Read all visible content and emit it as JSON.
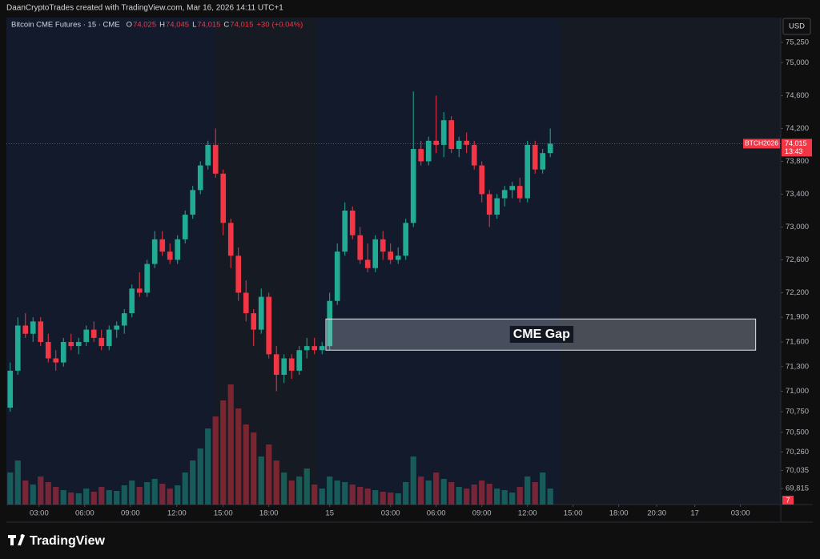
{
  "header": {
    "text": "DaanCryptoTrades created with TradingView.com, Mar 16, 2026 14:11 UTC+1"
  },
  "chart_data": {
    "type": "candlestick",
    "title": "Bitcoin CME Futures · 15 · CME",
    "ohlc_legend": [
      {
        "key": "O",
        "value": 74025,
        "label": "74,025"
      },
      {
        "key": "H",
        "value": 74045,
        "label": "74,045"
      },
      {
        "key": "L",
        "value": 74015,
        "label": "74,015"
      },
      {
        "key": "C",
        "value": 74015,
        "label": "74,015"
      }
    ],
    "change": {
      "value": 30,
      "label": "+30"
    },
    "change_pct": {
      "value": 0.04,
      "label": "(+0.04%)"
    },
    "currency": "USD",
    "symbol": "BTCH2026",
    "last_price": {
      "value": 74015,
      "label": "74,015"
    },
    "countdown": "13:43",
    "badge": 7,
    "up_color": "#22ab94",
    "down_color": "#f23645",
    "ylim": [
      69620,
      75550
    ],
    "yticks": [
      {
        "value": 69815,
        "label": "69,815"
      },
      {
        "value": 70035,
        "label": "70,035"
      },
      {
        "value": 70260,
        "label": "70,260"
      },
      {
        "value": 70500,
        "label": "70,500"
      },
      {
        "value": 70750,
        "label": "70,750"
      },
      {
        "value": 71000,
        "label": "71,000"
      },
      {
        "value": 71300,
        "label": "71,300"
      },
      {
        "value": 71600,
        "label": "71,600"
      },
      {
        "value": 71900,
        "label": "71,900"
      },
      {
        "value": 72200,
        "label": "72,200"
      },
      {
        "value": 72600,
        "label": "72,600"
      },
      {
        "value": 73000,
        "label": "73,000"
      },
      {
        "value": 73400,
        "label": "73,400"
      },
      {
        "value": 73800,
        "label": "73,800"
      },
      {
        "value": 74200,
        "label": "74,200"
      },
      {
        "value": 74600,
        "label": "74,600"
      },
      {
        "value": 75000,
        "label": "75,000"
      },
      {
        "value": 75250,
        "label": "75,250"
      }
    ],
    "xlim": [
      -0.5,
      101.3
    ],
    "xticks": [
      {
        "value": 3.8,
        "label": "03:00"
      },
      {
        "value": 9.8,
        "label": "06:00"
      },
      {
        "value": 15.8,
        "label": "09:00"
      },
      {
        "value": 21.9,
        "label": "12:00"
      },
      {
        "value": 28,
        "label": "15:00"
      },
      {
        "value": 34,
        "label": "18:00"
      },
      {
        "value": 42,
        "label": "15"
      },
      {
        "value": 50,
        "label": "03:00"
      },
      {
        "value": 56,
        "label": "06:00"
      },
      {
        "value": 62,
        "label": "09:00"
      },
      {
        "value": 68,
        "label": "12:00"
      },
      {
        "value": 74,
        "label": "15:00"
      },
      {
        "value": 80,
        "label": "18:00"
      },
      {
        "value": 85,
        "label": "20:30"
      },
      {
        "value": 90,
        "label": "17"
      },
      {
        "value": 96,
        "label": "03:00"
      }
    ],
    "open": [
      70800,
      71250,
      71800,
      71700,
      71850,
      71600,
      71400,
      71350,
      71600,
      71550,
      71600,
      71750,
      71650,
      71550,
      71750,
      71800,
      71950,
      72250,
      72200,
      72550,
      72850,
      72700,
      72600,
      72850,
      73150,
      73450,
      73750,
      74000,
      73650,
      73050,
      72650,
      72200,
      71950,
      71750,
      72150,
      71450,
      71200,
      71400,
      71250,
      71500,
      71550,
      71500,
      71550,
      72100,
      72700,
      73200,
      72900,
      72600,
      72500,
      72850,
      72700,
      72600,
      72650,
      73050,
      73950,
      73800,
      74050,
      74000,
      74300,
      73950,
      74050,
      74000,
      73750,
      73400,
      73150,
      73350,
      73450,
      73500,
      73350,
      74000,
      73700,
      73900
    ],
    "high": [
      71350,
      71900,
      71950,
      71900,
      71900,
      71700,
      71500,
      71650,
      71700,
      71650,
      71800,
      71850,
      71750,
      71800,
      71850,
      72000,
      72300,
      72450,
      72600,
      72950,
      72950,
      72800,
      72900,
      73200,
      73500,
      73800,
      74050,
      74200,
      73700,
      73100,
      72750,
      72350,
      72000,
      72250,
      72200,
      71550,
      71450,
      71450,
      71550,
      71650,
      71650,
      71600,
      72200,
      72800,
      73300,
      73250,
      73000,
      72800,
      72900,
      72950,
      72800,
      72750,
      73100,
      74650,
      74050,
      74100,
      74600,
      74400,
      74350,
      74100,
      74150,
      74050,
      73800,
      73450,
      73400,
      73500,
      73550,
      73600,
      74050,
      74050,
      73950,
      74200
    ],
    "low": [
      70750,
      71200,
      71650,
      71600,
      71550,
      71350,
      71250,
      71300,
      71500,
      71450,
      71550,
      71600,
      71500,
      71500,
      71650,
      71700,
      71900,
      72150,
      72150,
      72500,
      72650,
      72550,
      72550,
      72800,
      73100,
      73400,
      73700,
      73600,
      72900,
      72500,
      72100,
      71850,
      71550,
      71700,
      71400,
      71000,
      71100,
      71150,
      71200,
      71400,
      71450,
      71450,
      71500,
      72050,
      72650,
      72850,
      72550,
      72450,
      72450,
      72600,
      72550,
      72550,
      72600,
      73000,
      73750,
      73750,
      73900,
      73850,
      73900,
      73850,
      73900,
      73700,
      73300,
      73000,
      73100,
      73250,
      73350,
      73300,
      73300,
      73650,
      73650,
      73850
    ],
    "close": [
      71250,
      71800,
      71700,
      71850,
      71600,
      71400,
      71350,
      71600,
      71550,
      71600,
      71750,
      71650,
      71550,
      71750,
      71800,
      71950,
      72250,
      72200,
      72550,
      72850,
      72700,
      72600,
      72850,
      73150,
      73450,
      73750,
      74000,
      73650,
      73050,
      72650,
      72200,
      71950,
      71750,
      72150,
      71450,
      71200,
      71400,
      71250,
      71500,
      71550,
      71500,
      71550,
      72100,
      72700,
      73200,
      72900,
      72600,
      72500,
      72850,
      72700,
      72600,
      72650,
      73050,
      73950,
      73800,
      74050,
      74000,
      74300,
      73950,
      74050,
      74000,
      73750,
      73400,
      73150,
      73350,
      73450,
      73500,
      73350,
      74000,
      73700,
      73900,
      74015
    ],
    "volume": [
      40,
      55,
      30,
      25,
      35,
      28,
      22,
      18,
      15,
      14,
      20,
      16,
      22,
      18,
      17,
      24,
      30,
      22,
      28,
      32,
      26,
      20,
      24,
      40,
      55,
      70,
      95,
      110,
      130,
      150,
      120,
      100,
      90,
      60,
      75,
      55,
      40,
      30,
      35,
      45,
      25,
      20,
      35,
      30,
      28,
      25,
      22,
      20,
      18,
      16,
      15,
      14,
      28,
      60,
      35,
      30,
      40,
      32,
      28,
      22,
      20,
      25,
      30,
      26,
      20,
      18,
      15,
      22,
      35,
      28,
      40,
      20
    ],
    "gap": {
      "label": "CME Gap",
      "top": 71880,
      "bottom": 71500,
      "x": [
        41.5,
        98.0
      ]
    }
  },
  "footer": {
    "logo": "TradingView"
  }
}
